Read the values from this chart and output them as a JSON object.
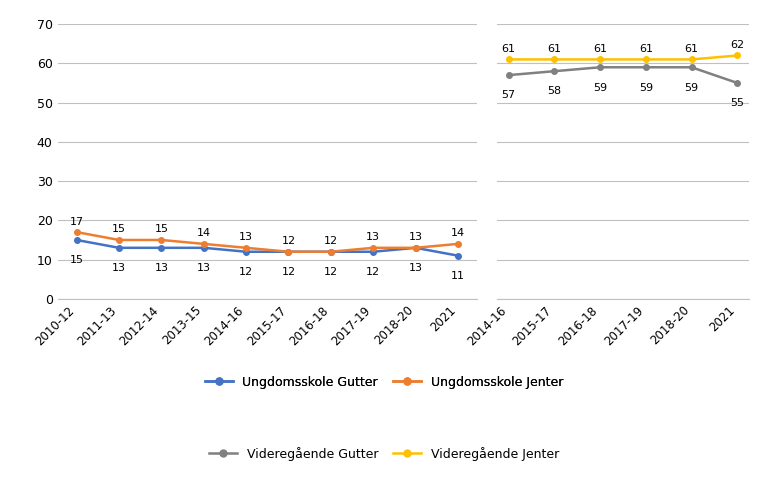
{
  "ungdomsskole_x": [
    0,
    1,
    2,
    3,
    4,
    5,
    6,
    7,
    8,
    9
  ],
  "ungdomsskole_labels": [
    "2010-12",
    "2011-13",
    "2012-14",
    "2013-15",
    "2014-16",
    "2015-17",
    "2016-18",
    "2017-19",
    "2018-20",
    "2021"
  ],
  "ungdomsskole_gutter": [
    15,
    13,
    13,
    13,
    12,
    12,
    12,
    12,
    13,
    11
  ],
  "ungdomsskole_jenter": [
    17,
    15,
    15,
    14,
    13,
    12,
    12,
    13,
    13,
    14
  ],
  "videregaende_x": [
    0,
    1,
    2,
    3,
    4,
    5
  ],
  "videregaende_labels": [
    "2014-16",
    "2015-17",
    "2016-18",
    "2017-19",
    "2018-20",
    "2021"
  ],
  "videregaende_gutter": [
    57,
    58,
    59,
    59,
    59,
    55
  ],
  "videregaende_jenter": [
    61,
    61,
    61,
    61,
    61,
    62
  ],
  "color_ung_gutter": "#4472C4",
  "color_ung_jenter": "#ED7D31",
  "color_vg_gutter": "#808080",
  "color_vg_jenter": "#FFC000",
  "ylim": [
    0,
    70
  ],
  "yticks": [
    0,
    10,
    20,
    30,
    40,
    50,
    60,
    70
  ],
  "background_color": "#FFFFFF",
  "grid_color": "#C0C0C0",
  "legend_labels": [
    "Ungdomsskole Gutter",
    "Ungdomsskole Jenter",
    "Videregående Gutter",
    "Videregående Jenter"
  ]
}
